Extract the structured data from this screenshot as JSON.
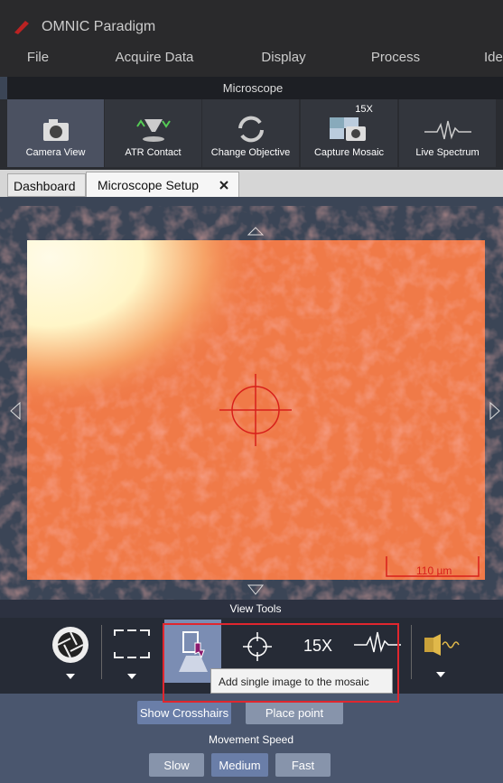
{
  "app": {
    "title": "OMNIC Paradigm"
  },
  "menu": [
    "File",
    "Acquire Data",
    "Display",
    "Process",
    "Ide"
  ],
  "ribbon": {
    "group": "Microscope",
    "buttons": [
      {
        "label": "Camera View"
      },
      {
        "label": "ATR Contact"
      },
      {
        "label": "Change Objective"
      },
      {
        "label": "Capture Mosaic",
        "badge": "15X"
      },
      {
        "label": "Live Spectrum"
      }
    ]
  },
  "tabs": [
    "Dashboard",
    "Microscope Setup"
  ],
  "viewer": {
    "scale_bar": "110 µm"
  },
  "view_tools": {
    "title": "View Tools",
    "magnification": "15X",
    "tooltip": "Add single image to the mosaic"
  },
  "controls": {
    "buttons": [
      "Show Crosshairs",
      "Place point"
    ],
    "speed_title": "Movement Speed",
    "speeds": [
      "Slow",
      "Medium",
      "Fast"
    ]
  }
}
